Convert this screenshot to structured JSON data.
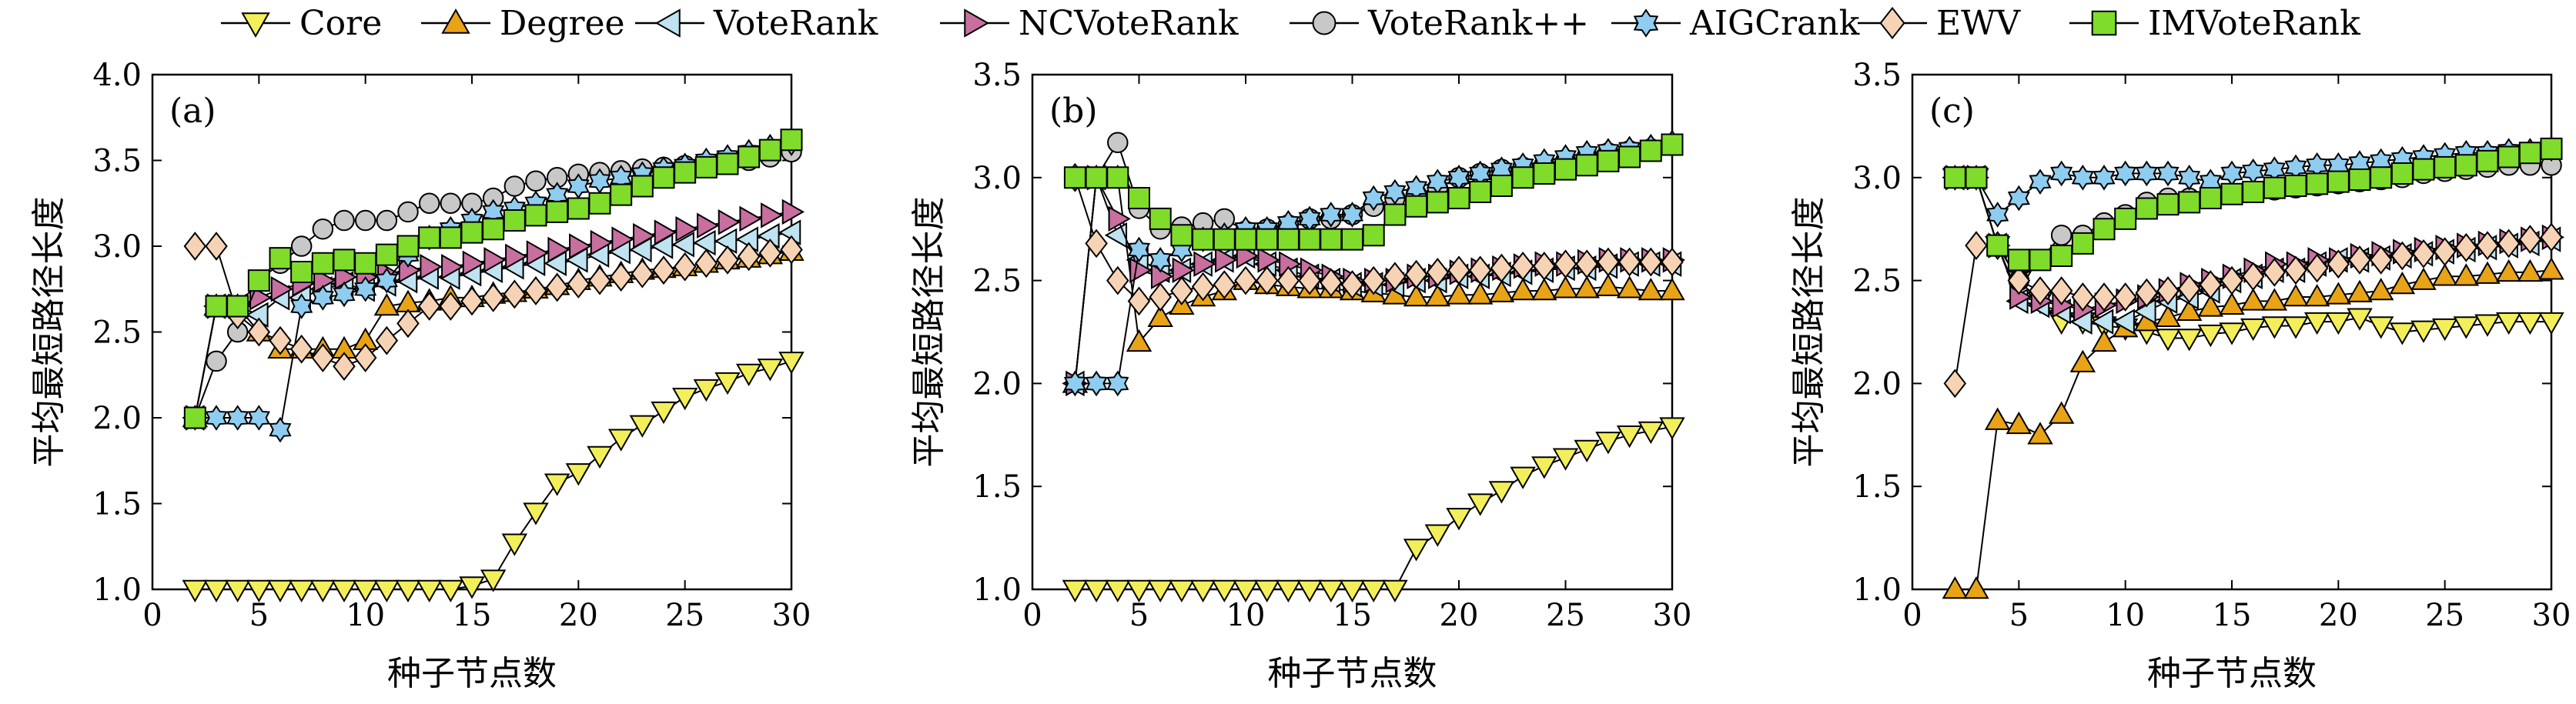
{
  "chart_data": {
    "type": "line",
    "xlabel": "种子节点数",
    "ylabel": "平均最短路径长度",
    "xlim": [
      0,
      30
    ],
    "xticks": [
      "0",
      "5",
      "10",
      "15",
      "20",
      "25",
      "30"
    ],
    "x": [
      2,
      3,
      4,
      5,
      6,
      7,
      8,
      9,
      10,
      11,
      12,
      13,
      14,
      15,
      16,
      17,
      18,
      19,
      20,
      21,
      22,
      23,
      24,
      25,
      26,
      27,
      28,
      29,
      30
    ],
    "legend": [
      {
        "name": "Core",
        "marker": "triangle-down",
        "color": "#f2ef5a"
      },
      {
        "name": "Degree",
        "marker": "triangle-up",
        "color": "#e8a317"
      },
      {
        "name": "VoteRank",
        "marker": "triangle-left",
        "color": "#bfe3f0"
      },
      {
        "name": "NCVoteRank",
        "marker": "triangle-right",
        "color": "#c86fa0"
      },
      {
        "name": "VoteRank++",
        "marker": "circle",
        "color": "#c8c8c8"
      },
      {
        "name": "AIGCrank",
        "marker": "star",
        "color": "#8ecdf0"
      },
      {
        "name": "EWV",
        "marker": "diamond",
        "color": "#f7d3b5"
      },
      {
        "name": "IMVoteRank",
        "marker": "square",
        "color": "#7fdc2a"
      }
    ],
    "panels": [
      {
        "label": "(a)",
        "ylim": [
          1.0,
          4.0
        ],
        "yticks": [
          "1.0",
          "1.5",
          "2.0",
          "2.5",
          "3.0",
          "3.5",
          "4.0"
        ],
        "series": [
          {
            "name": "Core",
            "values": [
              1,
              1,
              1,
              1,
              1,
              1,
              1,
              1,
              1,
              1,
              1,
              1,
              1,
              1.02,
              1.06,
              1.27,
              1.45,
              1.62,
              1.68,
              1.78,
              1.88,
              1.96,
              2.04,
              2.12,
              2.17,
              2.21,
              2.26,
              2.29,
              2.33
            ]
          },
          {
            "name": "Degree",
            "values": [
              2.0,
              2.65,
              2.65,
              2.5,
              2.4,
              2.4,
              2.4,
              2.4,
              2.45,
              2.65,
              2.67,
              2.68,
              2.7,
              2.7,
              2.72,
              2.73,
              2.75,
              2.77,
              2.8,
              2.82,
              2.84,
              2.86,
              2.87,
              2.88,
              2.9,
              2.92,
              2.93,
              2.95,
              2.97
            ]
          },
          {
            "name": "VoteRank",
            "values": [
              2.0,
              2.65,
              2.65,
              2.6,
              2.7,
              2.7,
              2.75,
              2.78,
              2.75,
              2.78,
              2.8,
              2.82,
              2.82,
              2.84,
              2.86,
              2.88,
              2.9,
              2.9,
              2.92,
              2.95,
              2.97,
              2.98,
              3.0,
              3.01,
              3.02,
              3.03,
              3.04,
              3.06,
              3.08
            ]
          },
          {
            "name": "NCVoteRank",
            "values": [
              2.0,
              2.65,
              2.65,
              2.7,
              2.75,
              2.78,
              2.8,
              2.82,
              2.82,
              2.84,
              2.86,
              2.88,
              2.88,
              2.9,
              2.92,
              2.94,
              2.96,
              2.98,
              3.0,
              3.02,
              3.04,
              3.06,
              3.08,
              3.1,
              3.12,
              3.14,
              3.16,
              3.18,
              3.2
            ]
          },
          {
            "name": "VoteRank++",
            "values": [
              2.0,
              2.33,
              2.5,
              2.8,
              2.9,
              3.0,
              3.1,
              3.15,
              3.15,
              3.15,
              3.2,
              3.25,
              3.25,
              3.25,
              3.28,
              3.35,
              3.38,
              3.4,
              3.42,
              3.43,
              3.44,
              3.45,
              3.46,
              3.47,
              3.48,
              3.49,
              3.5,
              3.52,
              3.55
            ]
          },
          {
            "name": "AIGCrank",
            "values": [
              2.0,
              2.0,
              2.0,
              2.0,
              1.93,
              2.65,
              2.7,
              2.72,
              2.75,
              2.8,
              2.95,
              3.05,
              3.1,
              3.15,
              3.2,
              3.22,
              3.25,
              3.3,
              3.35,
              3.38,
              3.4,
              3.42,
              3.45,
              3.47,
              3.5,
              3.52,
              3.55,
              3.58,
              3.6
            ]
          },
          {
            "name": "EWV",
            "values": [
              3.0,
              3.0,
              2.6,
              2.5,
              2.45,
              2.4,
              2.35,
              2.3,
              2.35,
              2.45,
              2.55,
              2.65,
              2.65,
              2.68,
              2.7,
              2.72,
              2.74,
              2.76,
              2.78,
              2.8,
              2.82,
              2.84,
              2.86,
              2.88,
              2.9,
              2.92,
              2.94,
              2.96,
              2.98
            ]
          },
          {
            "name": "IMVoteRank",
            "values": [
              2.0,
              2.65,
              2.65,
              2.8,
              2.93,
              2.85,
              2.9,
              2.92,
              2.9,
              2.95,
              3.0,
              3.05,
              3.05,
              3.08,
              3.1,
              3.15,
              3.18,
              3.2,
              3.22,
              3.25,
              3.3,
              3.35,
              3.4,
              3.43,
              3.46,
              3.48,
              3.52,
              3.56,
              3.62
            ]
          }
        ]
      },
      {
        "label": "(b)",
        "ylim": [
          1.0,
          3.5
        ],
        "yticks": [
          "1.0",
          "1.5",
          "2.0",
          "2.5",
          "3.0",
          "3.5"
        ],
        "series": [
          {
            "name": "Core",
            "values": [
              1,
              1,
              1,
              1,
              1,
              1,
              1,
              1,
              1,
              1,
              1,
              1,
              1,
              1,
              1,
              1.0,
              1.2,
              1.27,
              1.35,
              1.42,
              1.48,
              1.55,
              1.6,
              1.64,
              1.68,
              1.72,
              1.75,
              1.77,
              1.79
            ]
          },
          {
            "name": "Degree",
            "values": [
              2.0,
              3.0,
              3.0,
              2.2,
              2.32,
              2.38,
              2.42,
              2.45,
              2.5,
              2.48,
              2.47,
              2.46,
              2.46,
              2.45,
              2.44,
              2.43,
              2.42,
              2.42,
              2.43,
              2.43,
              2.44,
              2.45,
              2.45,
              2.46,
              2.46,
              2.47,
              2.46,
              2.45,
              2.45
            ]
          },
          {
            "name": "VoteRank",
            "values": [
              2.0,
              3.0,
              2.72,
              2.6,
              2.55,
              2.55,
              2.58,
              2.6,
              2.62,
              2.58,
              2.55,
              2.52,
              2.5,
              2.48,
              2.48,
              2.48,
              2.5,
              2.5,
              2.52,
              2.52,
              2.53,
              2.54,
              2.55,
              2.56,
              2.56,
              2.57,
              2.58,
              2.58,
              2.58
            ]
          },
          {
            "name": "NCVoteRank",
            "values": [
              2.0,
              3.0,
              2.8,
              2.55,
              2.52,
              2.55,
              2.58,
              2.6,
              2.62,
              2.6,
              2.58,
              2.55,
              2.52,
              2.5,
              2.5,
              2.5,
              2.52,
              2.52,
              2.54,
              2.55,
              2.56,
              2.57,
              2.58,
              2.58,
              2.59,
              2.6,
              2.6,
              2.6,
              2.6
            ]
          },
          {
            "name": "VoteRank++",
            "values": [
              3.0,
              3.0,
              3.17,
              2.85,
              2.75,
              2.76,
              2.78,
              2.8,
              2.74,
              2.75,
              2.77,
              2.8,
              2.8,
              2.82,
              2.86,
              2.9,
              2.92,
              2.95,
              3.0,
              3.02,
              3.04,
              3.05,
              3.06,
              3.08,
              3.1,
              3.12,
              3.13,
              3.14,
              3.16
            ]
          },
          {
            "name": "AIGCrank",
            "values": [
              2.0,
              2.0,
              2.0,
              2.65,
              2.6,
              2.65,
              2.7,
              2.72,
              2.75,
              2.75,
              2.78,
              2.8,
              2.82,
              2.82,
              2.9,
              2.93,
              2.95,
              2.98,
              3.0,
              3.02,
              3.04,
              3.06,
              3.08,
              3.1,
              3.12,
              3.13,
              3.14,
              3.15,
              3.17
            ]
          },
          {
            "name": "EWV",
            "values": [
              3.0,
              2.68,
              2.5,
              2.4,
              2.42,
              2.45,
              2.47,
              2.48,
              2.5,
              2.5,
              2.5,
              2.5,
              2.49,
              2.48,
              2.5,
              2.52,
              2.53,
              2.54,
              2.55,
              2.55,
              2.56,
              2.57,
              2.57,
              2.58,
              2.58,
              2.59,
              2.59,
              2.59,
              2.59
            ]
          },
          {
            "name": "IMVoteRank",
            "values": [
              3.0,
              3.0,
              3.0,
              2.9,
              2.8,
              2.72,
              2.7,
              2.7,
              2.7,
              2.7,
              2.7,
              2.7,
              2.7,
              2.7,
              2.72,
              2.82,
              2.86,
              2.88,
              2.9,
              2.93,
              2.96,
              3.0,
              3.02,
              3.04,
              3.06,
              3.08,
              3.1,
              3.13,
              3.16
            ]
          }
        ]
      },
      {
        "label": "(c)",
        "ylim": [
          1.0,
          3.5
        ],
        "yticks": [
          "1.0",
          "1.5",
          "2.0",
          "2.5",
          "3.0",
          "3.5"
        ],
        "series": [
          {
            "name": "Core",
            "values": [
              3.0,
              3.0,
              2.67,
              2.5,
              2.4,
              2.3,
              2.3,
              2.28,
              2.27,
              2.25,
              2.22,
              2.22,
              2.24,
              2.25,
              2.27,
              2.28,
              2.28,
              2.3,
              2.3,
              2.32,
              2.28,
              2.25,
              2.26,
              2.27,
              2.28,
              2.29,
              2.3,
              2.3,
              2.3
            ]
          },
          {
            "name": "Degree",
            "values": [
              1.0,
              1.0,
              1.82,
              1.8,
              1.75,
              1.85,
              2.1,
              2.2,
              2.27,
              2.3,
              2.32,
              2.35,
              2.37,
              2.38,
              2.4,
              2.4,
              2.42,
              2.42,
              2.43,
              2.44,
              2.45,
              2.48,
              2.5,
              2.52,
              2.52,
              2.53,
              2.54,
              2.54,
              2.55
            ]
          },
          {
            "name": "VoteRank",
            "values": [
              3.0,
              3.0,
              2.67,
              2.4,
              2.38,
              2.35,
              2.3,
              2.3,
              2.3,
              2.35,
              2.4,
              2.42,
              2.45,
              2.5,
              2.52,
              2.55,
              2.55,
              2.58,
              2.6,
              2.6,
              2.61,
              2.62,
              2.63,
              2.64,
              2.65,
              2.66,
              2.67,
              2.68,
              2.7
            ]
          },
          {
            "name": "NCVoteRank",
            "values": [
              3.0,
              3.0,
              2.67,
              2.42,
              2.4,
              2.38,
              2.36,
              2.38,
              2.4,
              2.42,
              2.45,
              2.48,
              2.5,
              2.52,
              2.55,
              2.58,
              2.58,
              2.6,
              2.6,
              2.62,
              2.63,
              2.64,
              2.65,
              2.66,
              2.67,
              2.68,
              2.69,
              2.7,
              2.71
            ]
          },
          {
            "name": "VoteRank++",
            "values": [
              3.0,
              3.0,
              2.67,
              2.5,
              2.6,
              2.72,
              2.72,
              2.78,
              2.82,
              2.88,
              2.9,
              2.9,
              2.9,
              2.92,
              2.93,
              2.94,
              2.95,
              2.96,
              2.97,
              2.98,
              2.99,
              3.0,
              3.02,
              3.03,
              3.04,
              3.05,
              3.06,
              3.06,
              3.06
            ]
          },
          {
            "name": "AIGCrank",
            "values": [
              3.0,
              3.0,
              2.82,
              2.9,
              2.98,
              3.02,
              3.0,
              3.0,
              3.02,
              3.02,
              3.02,
              3.0,
              2.98,
              3.02,
              3.03,
              3.04,
              3.05,
              3.06,
              3.06,
              3.07,
              3.08,
              3.09,
              3.1,
              3.11,
              3.12,
              3.12,
              3.13,
              3.13,
              3.14
            ]
          },
          {
            "name": "EWV",
            "values": [
              2.0,
              2.67,
              2.67,
              2.5,
              2.45,
              2.45,
              2.42,
              2.42,
              2.42,
              2.44,
              2.45,
              2.46,
              2.48,
              2.5,
              2.52,
              2.54,
              2.55,
              2.56,
              2.58,
              2.6,
              2.6,
              2.62,
              2.63,
              2.64,
              2.66,
              2.67,
              2.68,
              2.7,
              2.71
            ]
          },
          {
            "name": "IMVoteRank",
            "values": [
              3.0,
              3.0,
              2.67,
              2.6,
              2.6,
              2.62,
              2.68,
              2.75,
              2.8,
              2.85,
              2.87,
              2.88,
              2.9,
              2.92,
              2.93,
              2.95,
              2.96,
              2.97,
              2.98,
              2.99,
              3.0,
              3.02,
              3.04,
              3.05,
              3.06,
              3.08,
              3.1,
              3.12,
              3.14
            ]
          }
        ]
      }
    ]
  }
}
